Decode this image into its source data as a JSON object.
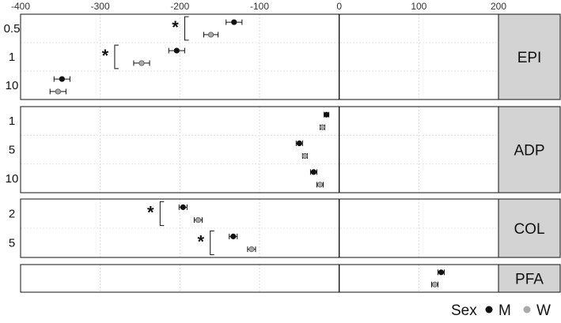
{
  "chart_data": {
    "type": "scatter",
    "x_ticks": [
      "-400",
      "-300",
      "-200",
      "-100",
      "0",
      "100",
      "200"
    ],
    "xlim": [
      -400,
      200
    ],
    "grid": true,
    "legend": {
      "title": "Sex",
      "position": "bottom-right",
      "entries": [
        {
          "label": "M",
          "color": "#111111"
        },
        {
          "label": "W",
          "color": "#aaaaaa"
        }
      ]
    },
    "colors": {
      "M": "#111111",
      "W": "#aaaaaa",
      "strip": "#d3d3d3"
    },
    "panels": [
      {
        "label": "EPI",
        "rows": [
          {
            "label": "0.5",
            "M": {
              "x": -132,
              "err": 10
            },
            "W": {
              "x": -161,
              "err": 9
            },
            "significant": true
          },
          {
            "label": "1",
            "M": {
              "x": -204,
              "err": 10
            },
            "W": {
              "x": -248,
              "err": 10
            },
            "significant": true
          },
          {
            "label": "10",
            "M": {
              "x": -348,
              "err": 10
            },
            "W": {
              "x": -353,
              "err": 10
            },
            "significant": false
          }
        ]
      },
      {
        "label": "ADP",
        "rows": [
          {
            "label": "1",
            "M": {
              "x": -16,
              "err": 3
            },
            "W": {
              "x": -21,
              "err": 3
            },
            "significant": false
          },
          {
            "label": "5",
            "M": {
              "x": -50,
              "err": 4
            },
            "W": {
              "x": -43,
              "err": 3
            },
            "significant": false
          },
          {
            "label": "10",
            "M": {
              "x": -32,
              "err": 4
            },
            "W": {
              "x": -24,
              "err": 4
            },
            "significant": false
          }
        ]
      },
      {
        "label": "COL",
        "rows": [
          {
            "label": "2",
            "M": {
              "x": -196,
              "err": 5
            },
            "W": {
              "x": -177,
              "err": 5
            },
            "significant": true
          },
          {
            "label": "5",
            "M": {
              "x": -133,
              "err": 5
            },
            "W": {
              "x": -110,
              "err": 5
            },
            "significant": true
          }
        ]
      },
      {
        "label": "PFA",
        "rows": [
          {
            "label": "",
            "M": {
              "x": 128,
              "err": 4
            },
            "W": {
              "x": 120,
              "err": 4
            },
            "significant": false
          }
        ]
      }
    ],
    "significance_symbol": "*"
  }
}
